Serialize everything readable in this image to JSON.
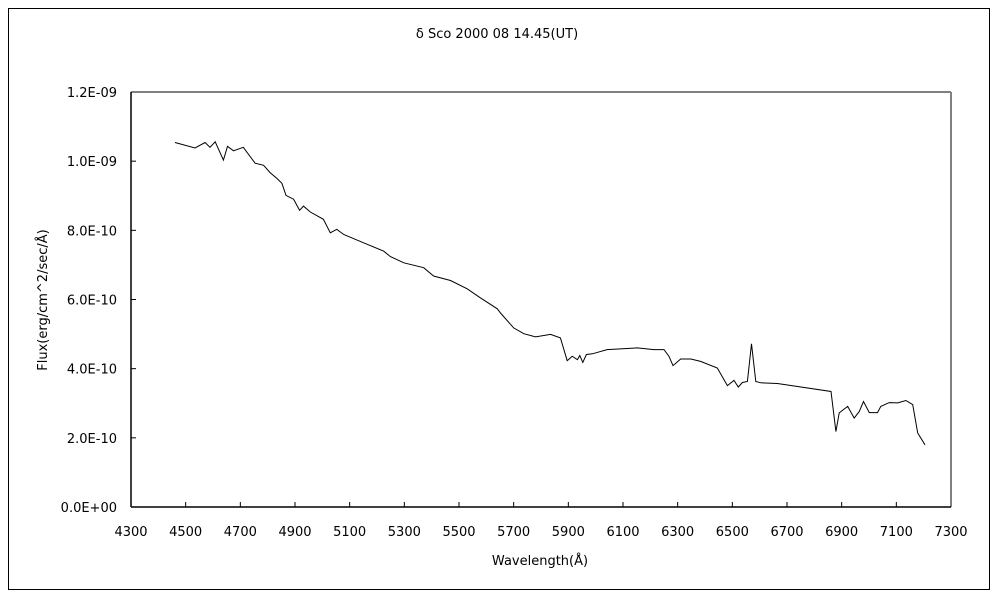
{
  "chart_data": {
    "type": "line",
    "title": "δ Sco  2000 08 14.45(UT)",
    "xlabel": "Wavelength(Å)",
    "ylabel": "Flux(erg/cm^2/sec/Å)",
    "xlim": [
      4300,
      7300
    ],
    "ylim": [
      0,
      1.2e-09
    ],
    "xticks": [
      4300,
      4500,
      4700,
      4900,
      5100,
      5300,
      5500,
      5700,
      5900,
      6100,
      6300,
      6500,
      6700,
      6900,
      7100,
      7300
    ],
    "xtick_labels": [
      "4300",
      "4500",
      "4700",
      "4900",
      "5100",
      "5300",
      "5500",
      "5700",
      "5900",
      "6100",
      "6300",
      "6500",
      "6700",
      "6900",
      "7100",
      "7300"
    ],
    "yticks": [
      0,
      2e-10,
      4e-10,
      6e-10,
      8e-10,
      1e-09,
      1.2e-09
    ],
    "ytick_labels": [
      "0.0E+00",
      "2.0E-10",
      "4.0E-10",
      "6.0E-10",
      "8.0E-10",
      "1.0E-09",
      "1.2E-09"
    ],
    "grid": false,
    "line_color": "#000000",
    "series": [
      {
        "x": [
          4461,
          4534,
          4571,
          4589,
          4608,
          4638,
          4653,
          4675,
          4711,
          4754,
          4785,
          4809,
          4834,
          4852,
          4867,
          4895,
          4917,
          4931,
          4956,
          5004,
          5029,
          5053,
          5078,
          5151,
          5224,
          5249,
          5298,
          5371,
          5407,
          5469,
          5530,
          5578,
          5640,
          5652,
          5700,
          5737,
          5780,
          5835,
          5871,
          5896,
          5914,
          5933,
          5942,
          5953,
          5966,
          5988,
          6042,
          6152,
          6213,
          6250,
          6268,
          6283,
          6311,
          6348,
          6384,
          6445,
          6482,
          6506,
          6522,
          6537,
          6555,
          6570,
          6586,
          6604,
          6665,
          6861,
          6879,
          6891,
          6922,
          6946,
          6964,
          6980,
          7001,
          7031,
          7043,
          7074,
          7105,
          7135,
          7160,
          7178,
          7205
        ],
        "y": [
          1.054e-09,
          1.038e-09,
          1.054e-09,
          1.04e-09,
          1.056e-09,
          1.003e-09,
          1.043e-09,
          1.03e-09,
          1.04e-09,
          9.94e-10,
          9.88e-10,
          9.67e-10,
          9.5e-10,
          9.36e-10,
          9.01e-10,
          8.9e-10,
          8.58e-10,
          8.7e-10,
          8.53e-10,
          8.32e-10,
          7.93e-10,
          8.03e-10,
          7.88e-10,
          7.64e-10,
          7.4e-10,
          7.24e-10,
          7.06e-10,
          6.92e-10,
          6.68e-10,
          6.55e-10,
          6.31e-10,
          6.05e-10,
          5.73e-10,
          5.61e-10,
          5.18e-10,
          5.01e-10,
          4.92e-10,
          4.99e-10,
          4.89e-10,
          4.23e-10,
          4.36e-10,
          4.26e-10,
          4.38e-10,
          4.18e-10,
          4.41e-10,
          4.43e-10,
          4.55e-10,
          4.6e-10,
          4.55e-10,
          4.55e-10,
          4.36e-10,
          4.09e-10,
          4.28e-10,
          4.28e-10,
          4.21e-10,
          4.02e-10,
          3.51e-10,
          3.66e-10,
          3.47e-10,
          3.6e-10,
          3.63e-10,
          4.72e-10,
          3.63e-10,
          3.59e-10,
          3.57e-10,
          3.34e-10,
          2.18e-10,
          2.72e-10,
          2.91e-10,
          2.57e-10,
          2.76e-10,
          3.05e-10,
          2.73e-10,
          2.73e-10,
          2.91e-10,
          3.02e-10,
          3.01e-10,
          3.08e-10,
          2.96e-10,
          2.14e-10,
          1.8e-10
        ]
      }
    ]
  }
}
